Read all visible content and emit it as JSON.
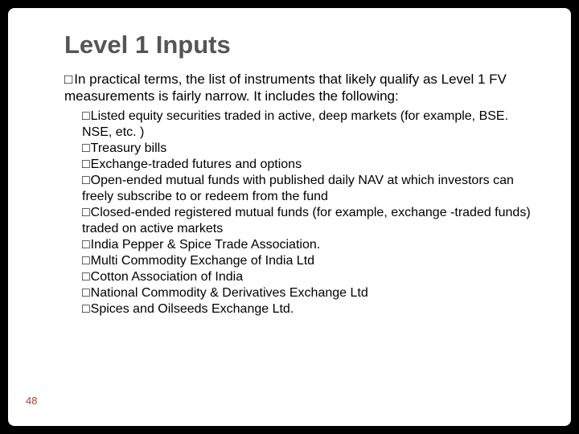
{
  "title": "Level 1 Inputs",
  "intro": "In practical terms, the list of instruments that likely qualify as Level 1 FV measurements is fairly narrow. It includes the following:",
  "bullets": [
    "Listed equity securities traded in active, deep markets (for example, BSE. NSE, etc. )",
    "Treasury bills",
    "Exchange-traded futures and options",
    "Open-ended mutual funds with published daily NAV at which investors can freely subscribe to or redeem from the fund",
    "Closed-ended registered mutual funds (for example, exchange -traded funds) traded on active markets",
    "India Pepper & Spice Trade Association.",
    "Multi Commodity Exchange of India Ltd",
    "Cotton Association of India",
    "National Commodity & Derivatives Exchange Ltd",
    "Spices and Oilseeds Exchange Ltd."
  ],
  "page_number": "48",
  "colors": {
    "frame_bg": "#000000",
    "slide_bg": "#ffffff",
    "title_color": "#555555",
    "body_color": "#000000",
    "pagenum_color": "#b04030"
  },
  "bullet_glyph": "□"
}
